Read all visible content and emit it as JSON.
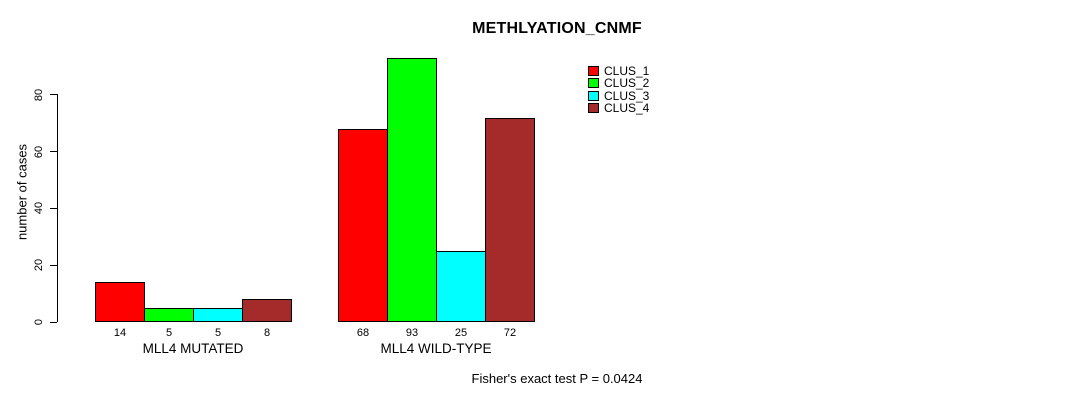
{
  "chart_data": {
    "type": "bar",
    "title": "METHLYATION_CNMF",
    "ylabel": "number of cases",
    "xlabel": "",
    "categories": [
      "MLL4 MUTATED",
      "MLL4 WILD-TYPE"
    ],
    "series": [
      {
        "name": "CLUS_1",
        "color": "#FF0000",
        "values": [
          14,
          68
        ]
      },
      {
        "name": "CLUS_2",
        "color": "#00FF00",
        "values": [
          5,
          93
        ]
      },
      {
        "name": "CLUS_3",
        "color": "#00FFFF",
        "values": [
          5,
          25
        ]
      },
      {
        "name": "CLUS_4",
        "color": "#A52A2A",
        "values": [
          8,
          72
        ]
      }
    ],
    "bar_value_labels": [
      [
        "14",
        "5",
        "5",
        "8"
      ],
      [
        "68",
        "93",
        "25",
        "72"
      ]
    ],
    "yticks": [
      0,
      20,
      40,
      60,
      80
    ],
    "ylim": [
      0,
      93
    ],
    "grid": false,
    "legend_position": "top-right-inside",
    "annotation": "Fisher's exact test P = 0.0424"
  }
}
